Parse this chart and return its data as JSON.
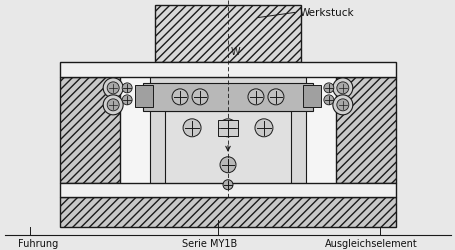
{
  "bg_color": "#e8e8e8",
  "fig_bg": "#e8e8e8",
  "label_werkstuck": "Werkstuck",
  "label_fuhrung": "Fuhrung",
  "label_serie": "Serie MY1B",
  "label_ausgleich": "Ausgleichselement",
  "label_w": "W",
  "lc": "#1a1a1a",
  "hatch_fc": "#d0d0d0",
  "plate_fc": "#f0f0f0",
  "rail_fc": "#b8b8b8",
  "body_fc": "#d5d5d5",
  "bearing_fc": "#999999",
  "white": "#ffffff"
}
